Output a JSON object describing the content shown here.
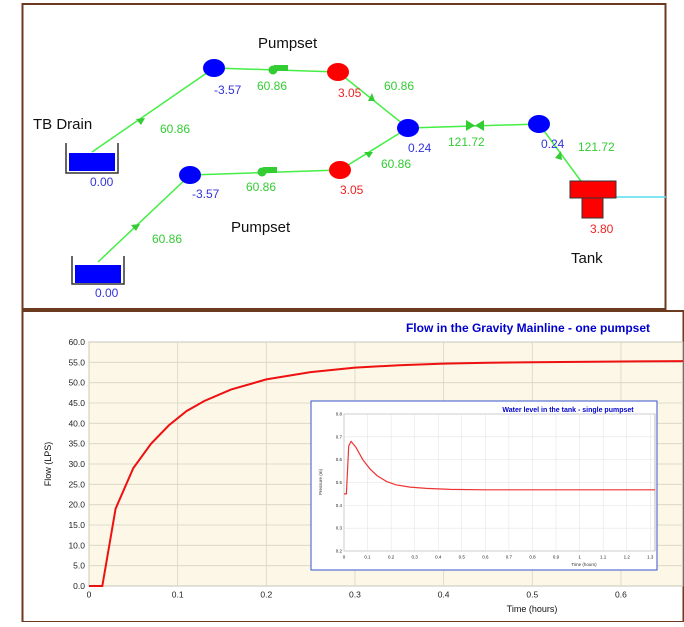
{
  "network": {
    "pumpset_label_top": "Pumpset",
    "pumpset_label_bottom": "Pumpset",
    "tb_drain_label": "TB Drain",
    "tank_label": "Tank",
    "reservoir_top_value": "0.00",
    "reservoir_bottom_value": "0.00",
    "node_top_left_value": "-3.57",
    "node_bottom_left_value": "-3.57",
    "node_top_red_value": "3.05",
    "node_bottom_red_value": "3.05",
    "junction_value": "0.24",
    "node_right_value": "0.24",
    "tank_value": "3.80",
    "flow_top_pipe_in": "60.86",
    "flow_top_pump": "60.86",
    "flow_top_pipe_out": "60.86",
    "flow_bottom_pipe_in": "60.86",
    "flow_bottom_pump": "60.86",
    "flow_bottom_pipe_out": "60.86",
    "flow_valve": "121.72",
    "flow_tank_in": "121.72",
    "colors": {
      "pipe": "#44ee44",
      "node_blue": "#0000ff",
      "node_red": "#ff0000",
      "label_blue": "#3333dd",
      "label_red": "#ee2222",
      "label_green": "#33cc33"
    }
  },
  "chart_data": [
    {
      "type": "line",
      "title": "Flow in the Gravity Mainline - one pumpset",
      "xlabel": "Time (hours)",
      "ylabel": "Flow (LPS)",
      "xlim": [
        0,
        0.67
      ],
      "ylim": [
        0,
        60
      ],
      "x_ticks": [
        "0",
        "0.1",
        "0.2",
        "0.3",
        "0.4",
        "0.5",
        "0.6"
      ],
      "y_ticks": [
        "0.0",
        "5.0",
        "10.0",
        "15.0",
        "20.0",
        "25.0",
        "30.0",
        "35.0",
        "40.0",
        "45.0",
        "50.0",
        "55.0",
        "60.0"
      ],
      "grid": true,
      "series": [
        {
          "color": "#ee1111",
          "x": [
            0,
            0.015,
            0.03,
            0.05,
            0.07,
            0.09,
            0.11,
            0.13,
            0.16,
            0.2,
            0.25,
            0.3,
            0.35,
            0.4,
            0.45,
            0.5,
            0.55,
            0.6,
            0.67
          ],
          "y": [
            0,
            0,
            19,
            29,
            35,
            39.5,
            43,
            45.5,
            48.3,
            50.8,
            52.6,
            53.7,
            54.3,
            54.7,
            54.9,
            55.0,
            55.1,
            55.2,
            55.3
          ]
        }
      ]
    },
    {
      "type": "line",
      "title": "Water level in the tank - single pumpset",
      "xlabel": "Time (hours)",
      "ylabel": "Pressure (m)",
      "xlim": [
        0,
        1.32
      ],
      "ylim": [
        0.2,
        0.8
      ],
      "x_ticks": [
        "0",
        "0.1",
        "0.2",
        "0.3",
        "0.4",
        "0.5",
        "0.6",
        "0.7",
        "0.8",
        "0.9",
        "1",
        "1.1",
        "1.2",
        "1.3"
      ],
      "y_ticks": [
        "0.2",
        "0.3",
        "0.4",
        "0.5",
        "0.6",
        "0.7",
        "0.8"
      ],
      "grid": true,
      "series": [
        {
          "color": "#ee3333",
          "x": [
            0,
            0.01,
            0.02,
            0.03,
            0.05,
            0.08,
            0.11,
            0.14,
            0.18,
            0.22,
            0.28,
            0.35,
            0.45,
            0.6,
            0.8,
            1.0,
            1.32
          ],
          "y": [
            0.45,
            0.45,
            0.66,
            0.68,
            0.655,
            0.6,
            0.56,
            0.53,
            0.505,
            0.49,
            0.48,
            0.474,
            0.47,
            0.468,
            0.468,
            0.468,
            0.468
          ]
        }
      ]
    }
  ]
}
